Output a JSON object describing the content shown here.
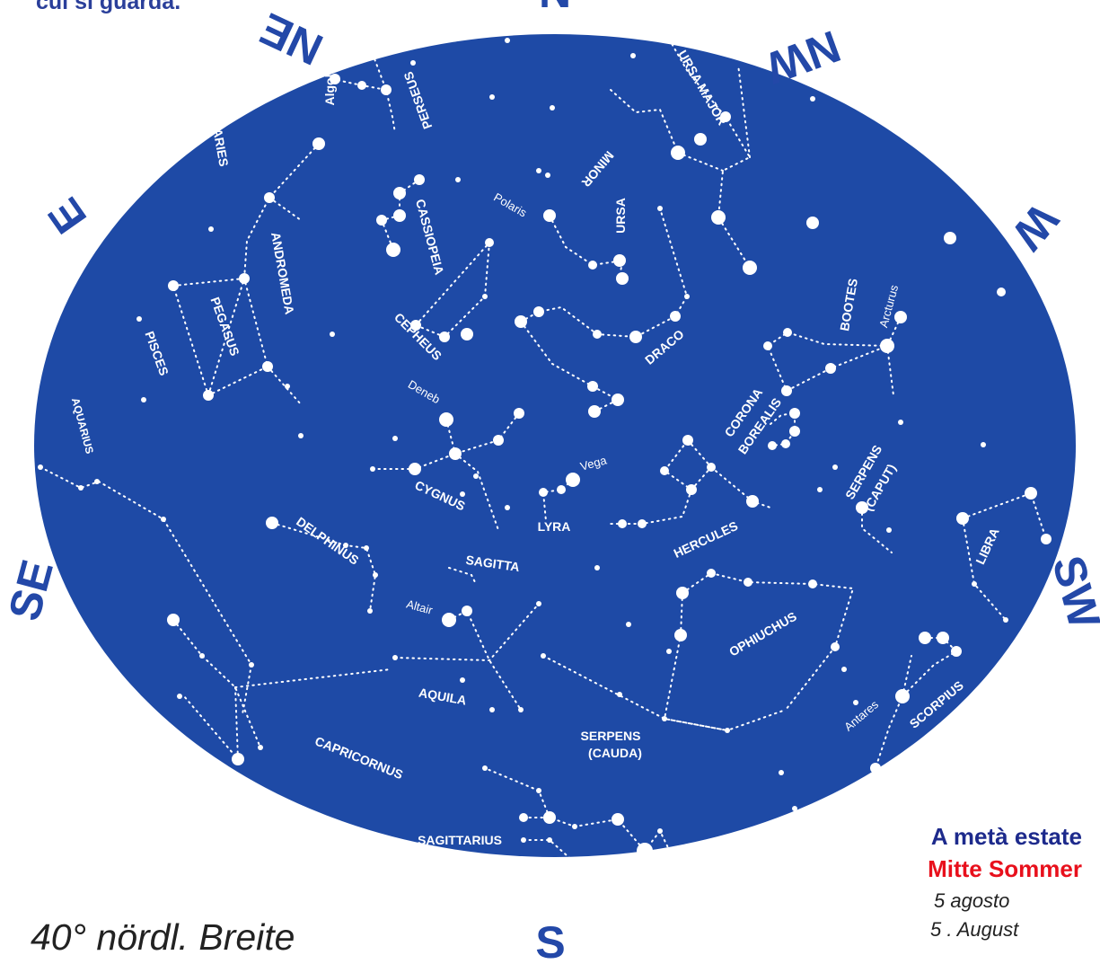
{
  "top_note": "cui si guarda.",
  "directions": {
    "n": "N",
    "ne": "NE",
    "nw": "NW",
    "e": "E",
    "w": "W",
    "se": "SE",
    "sw": "SW",
    "s": "S"
  },
  "constellations": {
    "perseus": "PERSEUS",
    "algol": "Algol",
    "aries": "ARIES",
    "ursa_major": "URSA MAJOR",
    "minor": "MINOR",
    "ursa": "URSA",
    "polaris": "Polaris",
    "cassiopeia": "CASSIOPEIA",
    "andromeda": "ANDROMEDA",
    "pegasus": "PEGASUS",
    "pisces": "PISCES",
    "cepheus": "CEPHEUS",
    "draco": "DRACO",
    "bootes": "BOOTES",
    "arcturus": "Arcturus",
    "corona": "CORONA",
    "borealis": "BOREALIS",
    "serpens": "SERPENS",
    "caput": "(CAPUT)",
    "deneb": "Deneb",
    "vega": "Vega",
    "cygnus": "CYGNUS",
    "lyra": "LYRA",
    "hercules": "HERCULES",
    "aquarius": "AQUARIUS",
    "delphinus": "DELPHINUS",
    "sagitta": "SAGITTA",
    "libra": "LIBRA",
    "altair": "Altair",
    "ophiuchus": "OPHIUCHUS",
    "aquila": "AQUILA",
    "antares": "Antares",
    "scorpius": "SCORPIUS",
    "serpens_cauda_1": "SERPENS",
    "serpens_cauda_2": "(CAUDA)",
    "capricornus": "CAPRICORNUS",
    "sagittarius": "SAGITTARIUS"
  },
  "legend": {
    "season_it": "A metà estate",
    "season_de": "Mitte Sommer",
    "date_it": "5 agosto",
    "date_de": "5 . August"
  },
  "latitude": "40° nördl. Breite",
  "colors": {
    "sky": "#1e4aa6",
    "compass": "#2348a8",
    "season_it": "#1d2a8c",
    "season_de": "#e8101c",
    "stars": "#ffffff"
  }
}
